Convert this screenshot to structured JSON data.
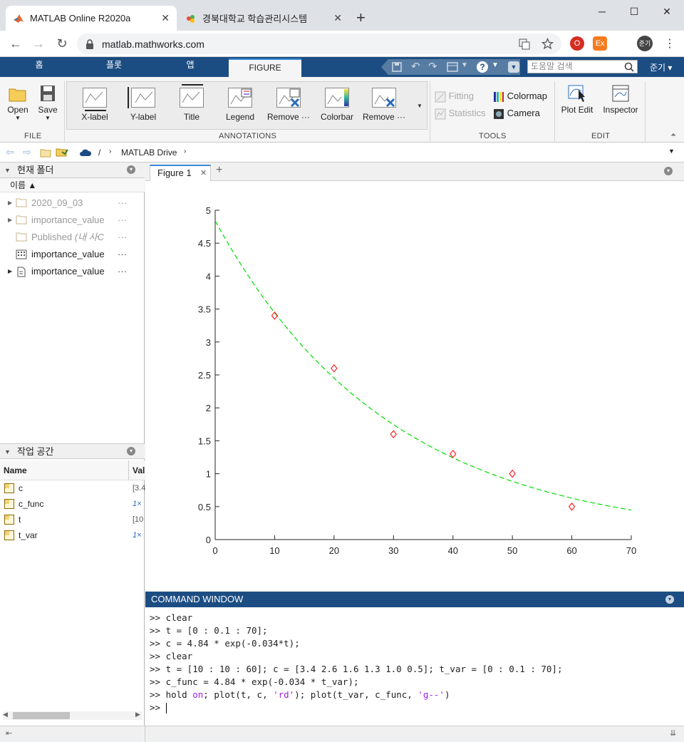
{
  "browser": {
    "tabs": [
      {
        "title": "MATLAB Online R2020a",
        "active": true
      },
      {
        "title": "경북대학교 학습관리시스템",
        "active": false
      }
    ],
    "url": "matlab.mathworks.com",
    "new_tab": "+",
    "window_controls": [
      "minimize",
      "maximize",
      "close"
    ],
    "profile_label": "준기"
  },
  "matlab_tabs": [
    "홈",
    "플롯",
    "앱",
    "FIGURE"
  ],
  "doc_search_placeholder": "도움말 검색",
  "user_menu": "준기 ▾",
  "ribbon": {
    "file": {
      "open": "Open",
      "save": "Save",
      "label": "FILE"
    },
    "annotations": {
      "items": [
        "X-label",
        "Y-label",
        "Title",
        "Legend",
        "Remove ···",
        "Colorbar",
        "Remove ···"
      ],
      "label": "ANNOTATIONS"
    },
    "tools": {
      "fitting": "Fitting",
      "statistics": "Statistics",
      "colormap": "Colormap",
      "camera": "Camera",
      "label": "TOOLS"
    },
    "edit": {
      "plot_edit": "Plot Edit",
      "inspector": "Inspector",
      "label": "EDIT"
    }
  },
  "path": {
    "root": "/",
    "folder": "MATLAB Drive"
  },
  "current_folder": {
    "title": "현재 폴더",
    "column": "이름 ▲",
    "items": [
      {
        "name": "2020_09_03",
        "type": "folder",
        "dim": true,
        "expand": true
      },
      {
        "name": "importance_value",
        "type": "folder",
        "dim": true,
        "expand": true
      },
      {
        "name": "Published",
        "suffix": "(내 사C",
        "type": "folder",
        "dim": true,
        "expand": false
      },
      {
        "name": "importance_value",
        "type": "mat",
        "dim": false,
        "expand": false
      },
      {
        "name": "importance_value",
        "type": "mlx",
        "dim": false,
        "expand": true
      }
    ]
  },
  "workspace": {
    "title": "작업 공간",
    "columns": [
      "Name",
      "Val"
    ],
    "items": [
      {
        "name": "c",
        "value": "[3.4"
      },
      {
        "name": "c_func",
        "value": "1×"
      },
      {
        "name": "t",
        "value": "[10"
      },
      {
        "name": "t_var",
        "value": "1×"
      }
    ]
  },
  "figure_tab": "Figure 1",
  "chart_data": {
    "type": "scatter",
    "title": "",
    "xlabel": "",
    "ylabel": "",
    "xlim": [
      0,
      70
    ],
    "ylim": [
      0,
      5
    ],
    "xticks": [
      0,
      10,
      20,
      30,
      40,
      50,
      60,
      70
    ],
    "yticks": [
      0,
      0.5,
      1,
      1.5,
      2,
      2.5,
      3,
      3.5,
      4,
      4.5,
      5
    ],
    "grid": false,
    "series": [
      {
        "style": "red diamond markers",
        "color": "#ff0000",
        "x": [
          10,
          20,
          30,
          40,
          50,
          60
        ],
        "y": [
          3.4,
          2.6,
          1.6,
          1.3,
          1.0,
          0.5
        ]
      },
      {
        "style": "green dashed line",
        "color": "#00dd00",
        "function": "4.84 * exp(-0.034 * t)",
        "x_range": [
          0,
          70
        ],
        "step": 0.1
      }
    ]
  },
  "command_window": {
    "title": "COMMAND WINDOW",
    "lines": [
      ">> clear",
      ">> t = [0 : 0.1 : 70];",
      ">> c = 4.84 * exp(-0.034*t);",
      ">> clear",
      ">> t = [10 : 10 : 60]; c = [3.4 2.6 1.6 1.3 1.0 0.5]; t_var = [0 : 0.1 : 70];",
      ">> c_func = 4.84 * exp(-0.034 * t_var);"
    ],
    "last_line": {
      "prefix": ">> hold ",
      "kw": "on",
      "mid": "; plot(t, c, ",
      "s1": "'rd'",
      "mid2": "); plot(t_var, c_func, ",
      "s2": "'g--'",
      "end": ")"
    },
    "prompt": ">> "
  },
  "colors": {
    "matlab_blue": "#1c4d82",
    "ribbon": "#f5f5f5"
  }
}
